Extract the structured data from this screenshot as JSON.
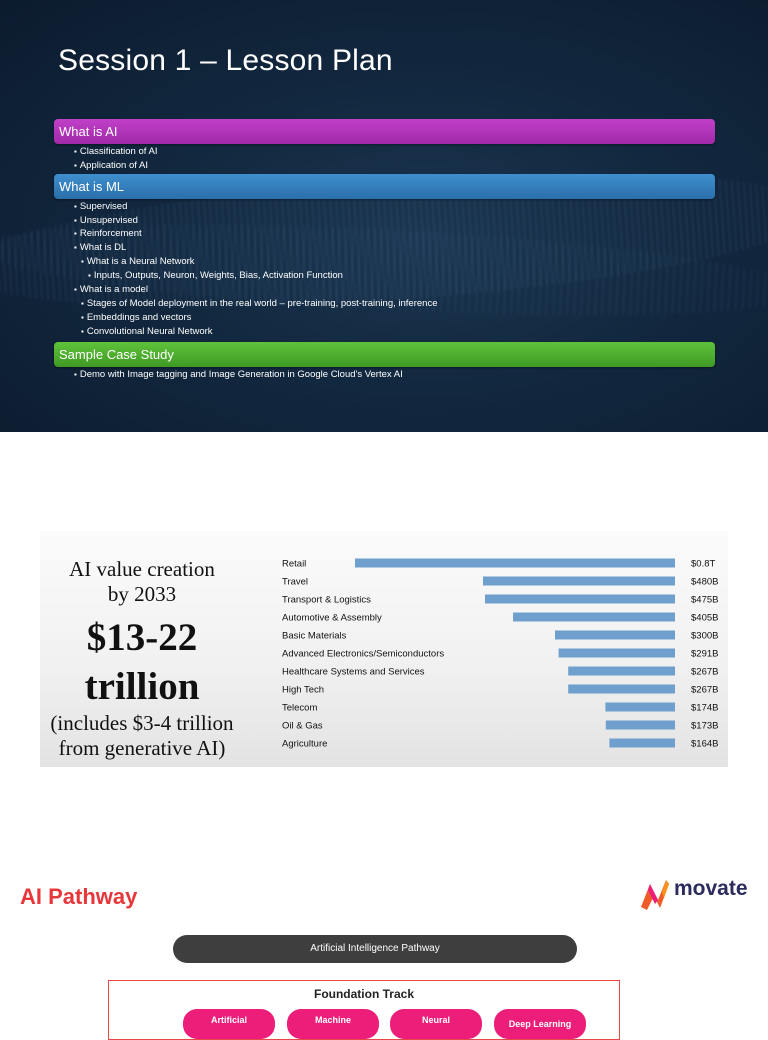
{
  "slide1": {
    "title": "Session 1 – Lesson Plan",
    "sections": [
      {
        "heading": "What is AI",
        "color": "#b035b8",
        "items": [
          "Classification of AI",
          "Application of AI"
        ]
      },
      {
        "heading": "What is ML",
        "color": "#3380c0",
        "items": [
          "Supervised",
          "Unsupervised",
          "Reinforcement",
          "What is DL",
          "What is a Neural Network",
          "Inputs, Outputs, Neuron, Weights, Bias, Activation Function",
          "What is a model",
          "Stages of Model deployment in the real world – pre-training, post-training, inference",
          "Embeddings and vectors",
          "Convolutional Neural Network"
        ]
      },
      {
        "heading": "Sample Case Study",
        "color": "#4fae2e",
        "items": [
          "Demo with Image tagging and Image Generation in Google Cloud's Vertex AI"
        ]
      }
    ]
  },
  "slide2": {
    "headline_line1": "AI value creation",
    "headline_line2": "by 2033",
    "big_line1": "$13-22",
    "big_line2": "trillion",
    "sub_line1": "(includes $3-4 trillion",
    "sub_line2": "from generative AI)"
  },
  "chart_data": {
    "type": "bar",
    "orientation": "horizontal",
    "title": "",
    "xlabel": "",
    "ylabel": "",
    "categories": [
      "Retail",
      "Travel",
      "Transport & Logistics",
      "Automotive & Assembly",
      "Basic Materials",
      "Advanced Electronics/Semiconductors",
      "Healthcare Systems and Services",
      "High Tech",
      "Telecom",
      "Oil & Gas",
      "Agriculture"
    ],
    "values": [
      800,
      480,
      475,
      405,
      300,
      291,
      267,
      267,
      174,
      173,
      164
    ],
    "value_labels": [
      "$0.8T",
      "$480B",
      "$475B",
      "$405B",
      "$300B",
      "$291B",
      "$267B",
      "$267B",
      "$174B",
      "$173B",
      "$164B"
    ],
    "unit": "billion USD",
    "bar_color": "#6f9fcc",
    "grid": false,
    "legend": "none"
  },
  "slide3": {
    "title": "AI Pathway",
    "logo_text": "movate",
    "pathway_label": "Artificial Intelligence Pathway",
    "track_title": "Foundation Track",
    "track_items": [
      "Artificial",
      "Machine",
      "Neural",
      "Deep Learning"
    ]
  },
  "colors": {
    "slide1_bg": "#12283f",
    "pathway_red": "#e8373a",
    "track_pink": "#ec1e79",
    "pill_dark": "#3e3e3e"
  }
}
